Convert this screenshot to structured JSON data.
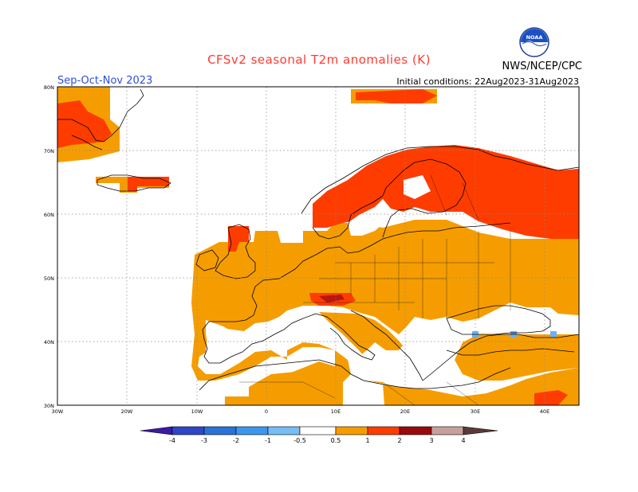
{
  "title": "CFSv2 seasonal T2m anomalies (K)",
  "season": "Sep-Oct-Nov 2023",
  "initial_conditions": "Initial conditions: 22Aug2023-31Aug2023",
  "agency": "NWS/NCEP/CPC",
  "logo_text": "NOAA",
  "lat_labels": [
    "80N",
    "70N",
    "60N",
    "50N",
    "40N",
    "30N"
  ],
  "lon_labels": [
    "30W",
    "20W",
    "10W",
    "0",
    "10E",
    "20E",
    "30E",
    "40E"
  ],
  "colorbar": {
    "labels": [
      "-4",
      "-3",
      "-2",
      "-1",
      "-0.5",
      "0.5",
      "1",
      "2",
      "3",
      "4"
    ],
    "colors": [
      "#3a1aa6",
      "#2e46c7",
      "#2a72d8",
      "#3d96ee",
      "#76bcf5",
      "#ffffff",
      "#f59d00",
      "#ff3c00",
      "#9b0a0a",
      "#c7a09a",
      "#5a3a38"
    ]
  },
  "colors": {
    "orange": "#f59d00",
    "red": "#ff3c00",
    "dark_red": "#b81515",
    "light_blue": "#6fb0f0"
  }
}
